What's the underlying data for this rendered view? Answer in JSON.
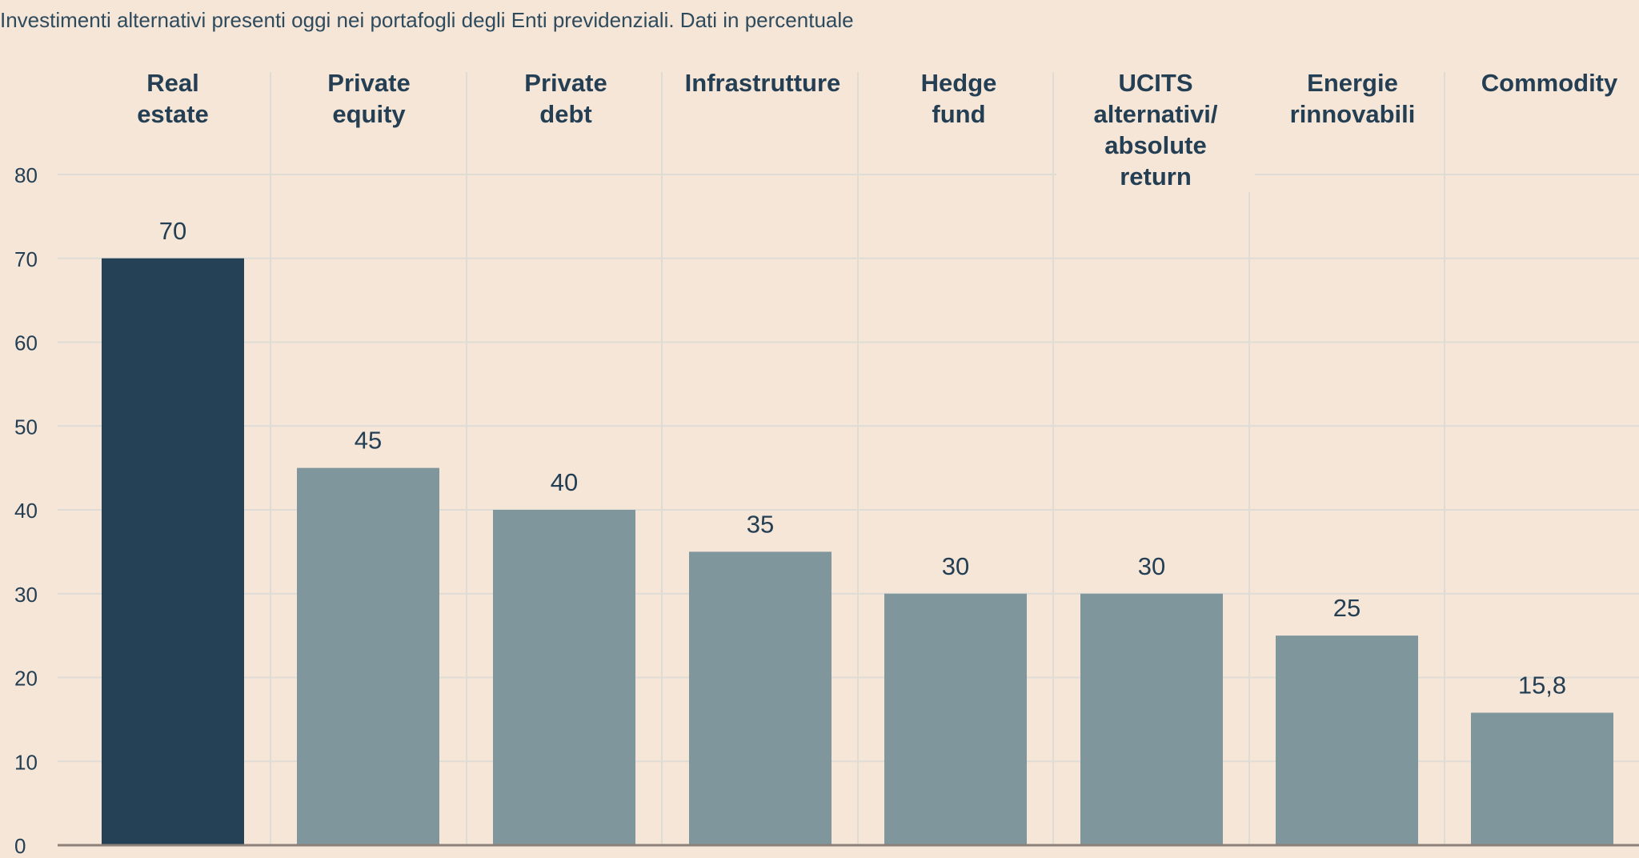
{
  "subtitle": "Investimenti alternativi presenti oggi nei portafogli degli Enti previdenziali. Dati in percentuale",
  "chart_data": {
    "type": "bar",
    "categories": [
      "Real\nestate",
      "Private\nequity",
      "Private\ndebt",
      "Infrastrutture",
      "Hedge\nfund",
      "UCITS\nalternativi/\nabsolute\nreturn",
      "Energie\nrinnovabili",
      "Commodity"
    ],
    "values": [
      70,
      45,
      40,
      35,
      30,
      30,
      25,
      15.8
    ],
    "value_labels": [
      "70",
      "45",
      "40",
      "35",
      "30",
      "30",
      "25",
      "15,8"
    ],
    "ylim": [
      0,
      80
    ],
    "yticks": [
      0,
      10,
      20,
      30,
      40,
      50,
      60,
      70,
      80
    ],
    "grid": true,
    "colors": {
      "highlight_bar": "#254156",
      "bar": "#7f969d",
      "grid": "#dfdcd6",
      "axis": "#8c8078",
      "text": "#243f54",
      "background": "#f5e6d8"
    },
    "highlight_index": 0
  }
}
